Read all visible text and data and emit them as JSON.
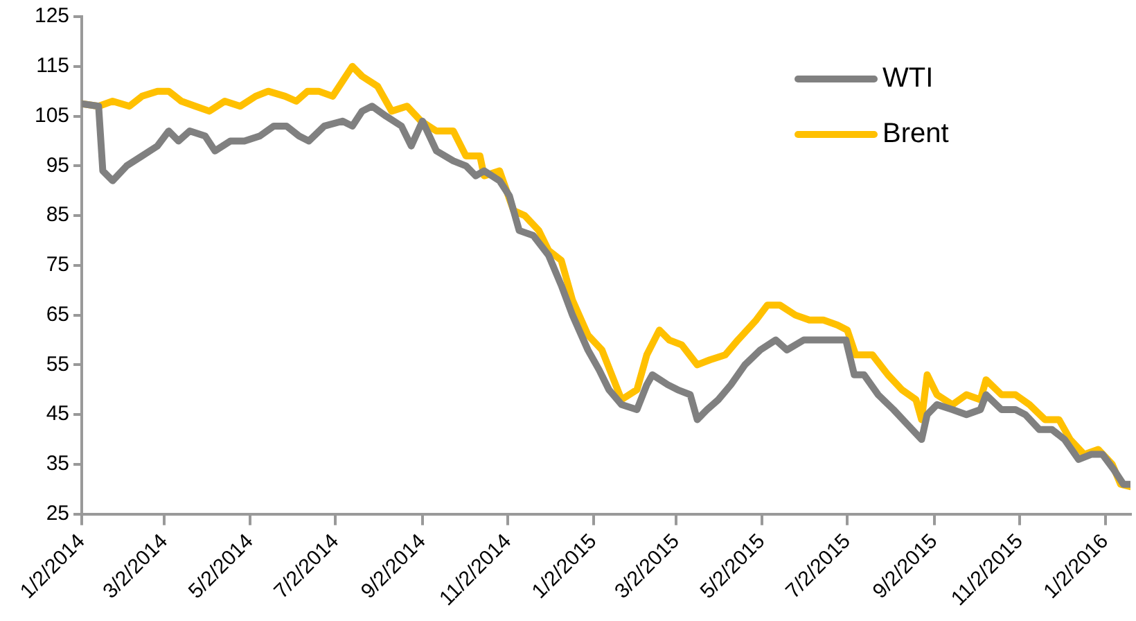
{
  "chart_data": {
    "type": "line",
    "xlim": [
      "2014-01-02",
      "2016-01-20"
    ],
    "xticks": [
      {
        "value": "2014-01-02",
        "label": "1/2/2014"
      },
      {
        "value": "2014-03-02",
        "label": "3/2/2014"
      },
      {
        "value": "2014-05-02",
        "label": "5/2/2014"
      },
      {
        "value": "2014-07-02",
        "label": "7/2/2014"
      },
      {
        "value": "2014-09-02",
        "label": "9/2/2014"
      },
      {
        "value": "2014-11-02",
        "label": "11/2/2014"
      },
      {
        "value": "2015-01-02",
        "label": "1/2/2015"
      },
      {
        "value": "2015-03-02",
        "label": "3/2/2015"
      },
      {
        "value": "2015-05-02",
        "label": "5/2/2015"
      },
      {
        "value": "2015-07-02",
        "label": "7/2/2015"
      },
      {
        "value": "2015-09-02",
        "label": "9/2/2015"
      },
      {
        "value": "2015-11-02",
        "label": "11/2/2015"
      },
      {
        "value": "2016-01-02",
        "label": "1/2/2016"
      }
    ],
    "ylim": [
      25,
      125
    ],
    "yticks": [
      25,
      35,
      45,
      55,
      65,
      75,
      85,
      95,
      105,
      115,
      125
    ],
    "grid": false,
    "legend": "top right",
    "marker": "none",
    "line_style": "solid",
    "series": [
      {
        "name": "WTI",
        "color": "#808080",
        "x": [
          "2014-01-02",
          "2014-01-14",
          "2014-01-17",
          "2014-01-24",
          "2014-02-03",
          "2014-02-14",
          "2014-02-25",
          "2014-03-05",
          "2014-03-12",
          "2014-03-20",
          "2014-03-31",
          "2014-04-07",
          "2014-04-18",
          "2014-04-28",
          "2014-05-09",
          "2014-05-19",
          "2014-05-28",
          "2014-06-06",
          "2014-06-13",
          "2014-06-24",
          "2014-07-07",
          "2014-07-14",
          "2014-07-21",
          "2014-07-28",
          "2014-08-07",
          "2014-08-18",
          "2014-08-25",
          "2014-09-02",
          "2014-09-12",
          "2014-09-24",
          "2014-10-03",
          "2014-10-10",
          "2014-10-16",
          "2014-10-27",
          "2014-11-03",
          "2014-11-10",
          "2014-11-20",
          "2014-12-01",
          "2014-12-10",
          "2014-12-18",
          "2014-12-29",
          "2015-01-06",
          "2015-01-13",
          "2015-01-22",
          "2015-02-02",
          "2015-02-09",
          "2015-02-13",
          "2015-02-24",
          "2015-03-03",
          "2015-03-12",
          "2015-03-17",
          "2015-03-24",
          "2015-04-01",
          "2015-04-10",
          "2015-04-20",
          "2015-05-01",
          "2015-05-12",
          "2015-05-20",
          "2015-06-01",
          "2015-06-10",
          "2015-06-22",
          "2015-07-01",
          "2015-07-07",
          "2015-07-14",
          "2015-07-24",
          "2015-08-04",
          "2015-08-14",
          "2015-08-24",
          "2015-08-28",
          "2015-09-04",
          "2015-09-15",
          "2015-09-25",
          "2015-10-05",
          "2015-10-09",
          "2015-10-20",
          "2015-10-30",
          "2015-11-06",
          "2015-11-16",
          "2015-11-25",
          "2015-12-04",
          "2015-12-14",
          "2015-12-23",
          "2015-12-31",
          "2016-01-08",
          "2016-01-15",
          "2016-01-20"
        ],
        "values": [
          107.5,
          107,
          94,
          92,
          95,
          97,
          99,
          102,
          100,
          102,
          101,
          98,
          100,
          100,
          101,
          103,
          103,
          101,
          100,
          103,
          104,
          103,
          106,
          107,
          105,
          103,
          99,
          104,
          98,
          96,
          95,
          93,
          94,
          92,
          89,
          82,
          81,
          77,
          71,
          65,
          58,
          54,
          50,
          47,
          46,
          51,
          53,
          51,
          50,
          49,
          44,
          46,
          48,
          51,
          55,
          58,
          60,
          58,
          60,
          60,
          60,
          60,
          53,
          53,
          49,
          46,
          43,
          40,
          45,
          47,
          46,
          45,
          46,
          49,
          46,
          46,
          45,
          42,
          42,
          40,
          36,
          37,
          37,
          34,
          31,
          31
        ]
      },
      {
        "name": "Brent",
        "color": "#ffc000",
        "x": [
          "2014-01-02",
          "2014-01-14",
          "2014-01-24",
          "2014-02-05",
          "2014-02-14",
          "2014-02-25",
          "2014-03-05",
          "2014-03-14",
          "2014-03-24",
          "2014-04-03",
          "2014-04-14",
          "2014-04-25",
          "2014-05-06",
          "2014-05-15",
          "2014-05-27",
          "2014-06-04",
          "2014-06-12",
          "2014-06-20",
          "2014-06-30",
          "2014-07-07",
          "2014-07-14",
          "2014-07-21",
          "2014-08-01",
          "2014-08-11",
          "2014-08-22",
          "2014-09-01",
          "2014-09-12",
          "2014-09-24",
          "2014-10-03",
          "2014-10-13",
          "2014-10-16",
          "2014-10-27",
          "2014-11-06",
          "2014-11-14",
          "2014-11-24",
          "2014-12-01",
          "2014-12-10",
          "2014-12-18",
          "2014-12-29",
          "2015-01-08",
          "2015-01-15",
          "2015-01-22",
          "2015-02-02",
          "2015-02-09",
          "2015-02-18",
          "2015-02-25",
          "2015-03-06",
          "2015-03-17",
          "2015-03-26",
          "2015-04-06",
          "2015-04-15",
          "2015-04-28",
          "2015-05-06",
          "2015-05-15",
          "2015-05-26",
          "2015-06-05",
          "2015-06-15",
          "2015-06-25",
          "2015-07-02",
          "2015-07-08",
          "2015-07-20",
          "2015-07-31",
          "2015-08-10",
          "2015-08-20",
          "2015-08-24",
          "2015-08-28",
          "2015-09-04",
          "2015-09-15",
          "2015-09-25",
          "2015-10-05",
          "2015-10-09",
          "2015-10-20",
          "2015-10-30",
          "2015-11-09",
          "2015-11-20",
          "2015-11-30",
          "2015-12-08",
          "2015-12-18",
          "2015-12-28",
          "2016-01-07",
          "2016-01-13",
          "2016-01-20"
        ],
        "values": [
          107.5,
          107,
          108,
          107,
          109,
          110,
          110,
          108,
          107,
          106,
          108,
          107,
          109,
          110,
          109,
          108,
          110,
          110,
          109,
          112,
          115,
          113,
          111,
          106,
          107,
          104,
          102,
          102,
          97,
          97,
          93,
          94,
          86,
          85,
          82,
          78,
          76,
          68,
          61,
          58,
          53,
          48,
          50,
          57,
          62,
          60,
          59,
          55,
          56,
          57,
          60,
          64,
          67,
          67,
          65,
          64,
          64,
          63,
          62,
          57,
          57,
          53,
          50,
          48,
          44,
          53,
          49,
          47,
          49,
          48,
          52,
          49,
          49,
          47,
          44,
          44,
          40,
          37,
          38,
          35,
          31,
          30.5
        ]
      }
    ]
  }
}
